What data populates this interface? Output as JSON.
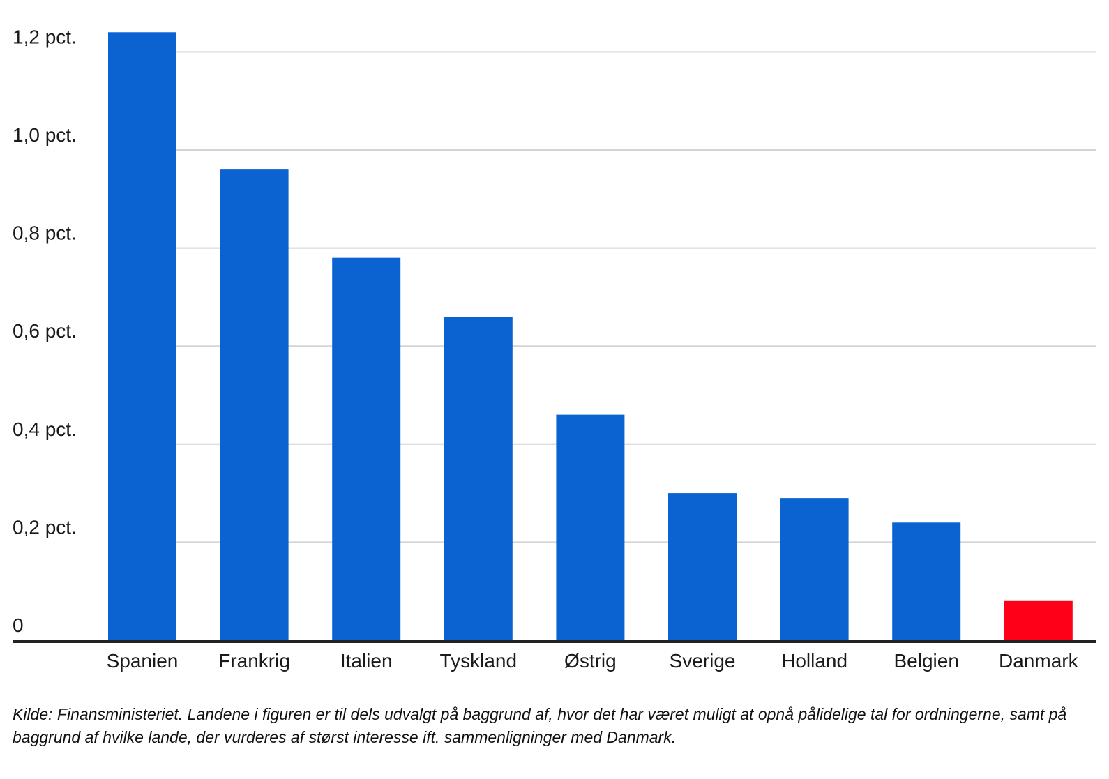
{
  "chart_data": {
    "type": "bar",
    "categories": [
      "Spanien",
      "Frankrig",
      "Italien",
      "Tyskland",
      "Østrig",
      "Sverige",
      "Holland",
      "Belgien",
      "Danmark"
    ],
    "values": [
      1.24,
      0.96,
      0.78,
      0.66,
      0.46,
      0.3,
      0.29,
      0.24,
      0.08
    ],
    "bar_colors": [
      "#0b63d1",
      "#0b63d1",
      "#0b63d1",
      "#0b63d1",
      "#0b63d1",
      "#0b63d1",
      "#0b63d1",
      "#0b63d1",
      "#ff0019"
    ],
    "yticks": [
      {
        "value": 0,
        "label": "0"
      },
      {
        "value": 0.2,
        "label": "0,2 pct."
      },
      {
        "value": 0.4,
        "label": "0,4 pct."
      },
      {
        "value": 0.6,
        "label": "0,6 pct."
      },
      {
        "value": 0.8,
        "label": "0,8 pct."
      },
      {
        "value": 1.0,
        "label": "1,0 pct."
      },
      {
        "value": 1.2,
        "label": "1,2 pct."
      }
    ],
    "ylim": [
      0,
      1.2
    ],
    "grid": true,
    "title": "",
    "xlabel": "",
    "ylabel": ""
  },
  "footnote": "Kilde: Finansministeriet.  Landene i figuren er til dels udvalgt på baggrund af, hvor det har været muligt at opnå pålidelige tal for ordningerne, samt på baggrund af hvilke lande, der vurderes af størst interesse ift. sammenligninger med Danmark."
}
